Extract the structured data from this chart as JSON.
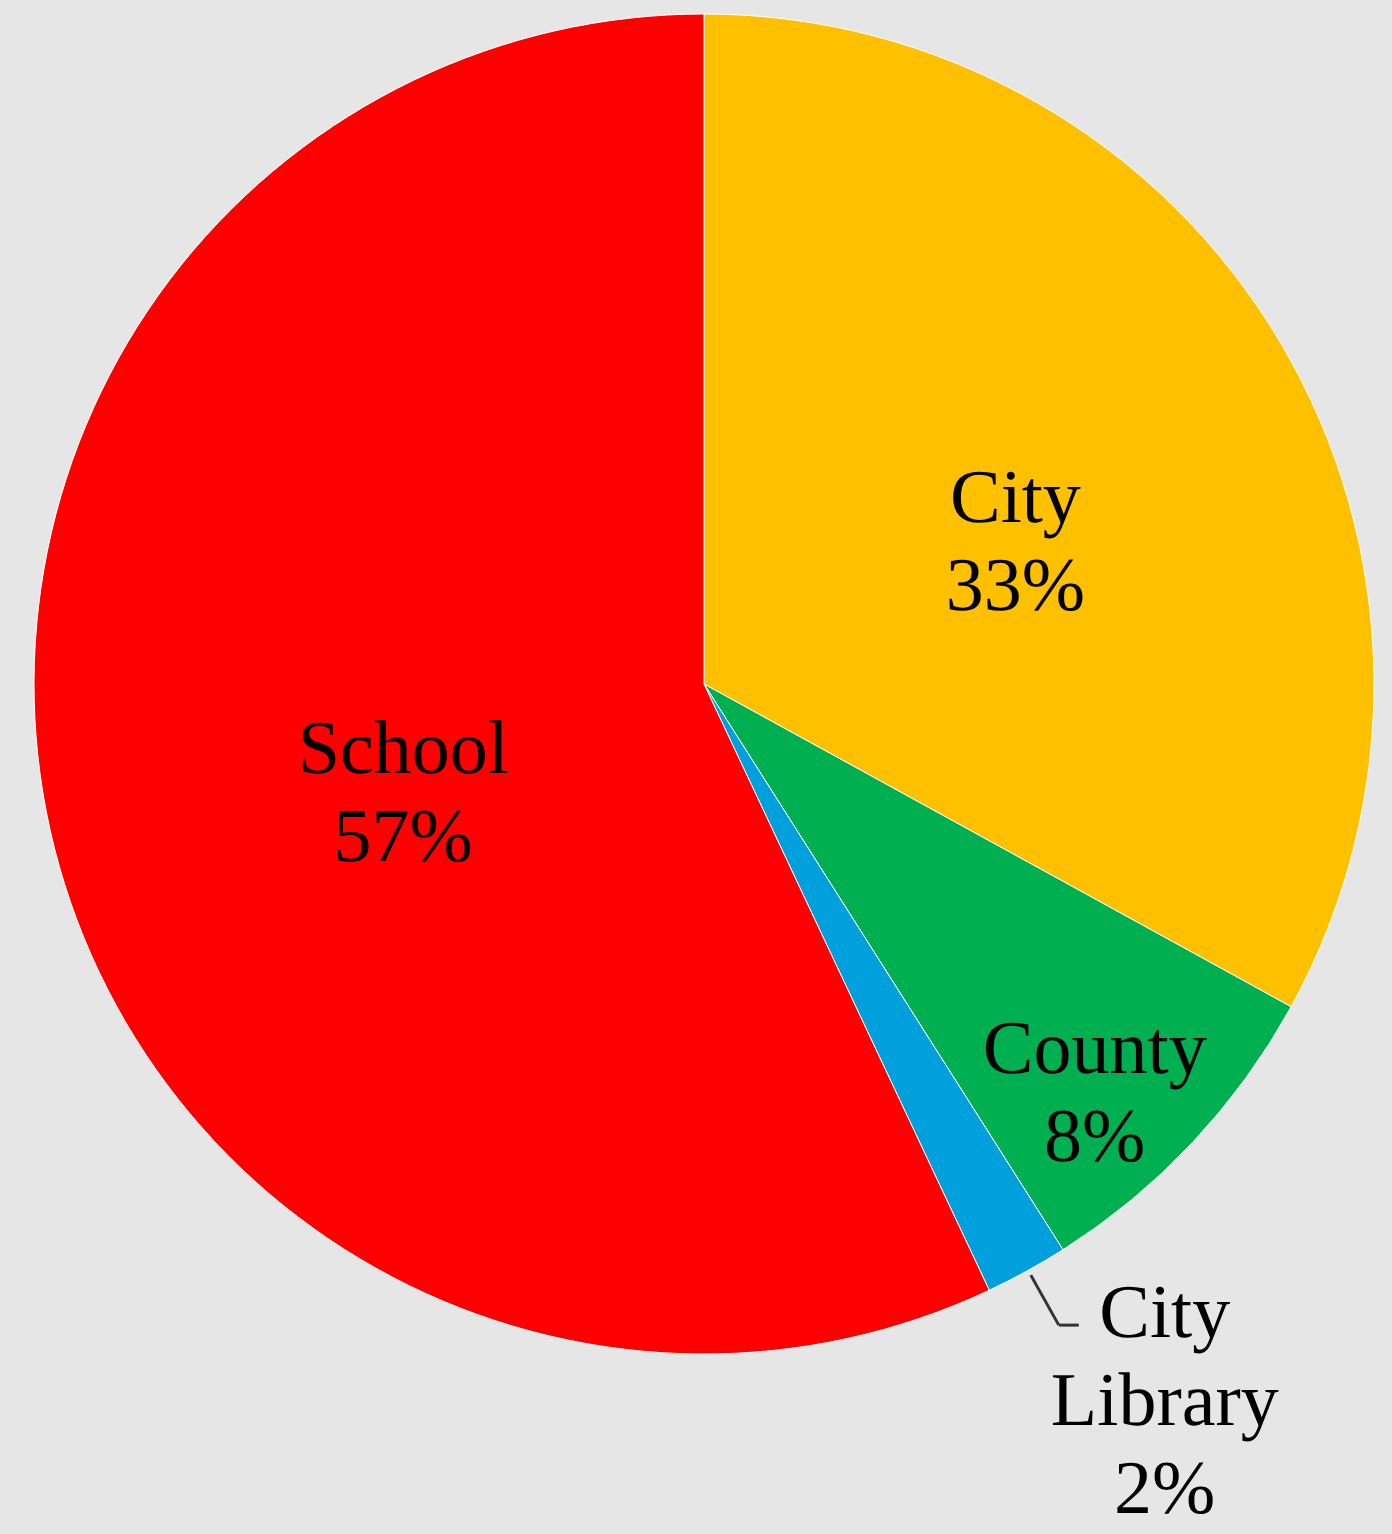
{
  "chart_data": {
    "type": "pie",
    "categories": [
      "City",
      "County",
      "City Library",
      "School"
    ],
    "values": [
      33,
      8,
      2,
      57
    ],
    "value_labels": [
      "33%",
      "8%",
      "2%",
      "57%"
    ],
    "colors": [
      "#ffc000",
      "#00b050",
      "#00a0dc",
      "#ff0000"
    ]
  }
}
